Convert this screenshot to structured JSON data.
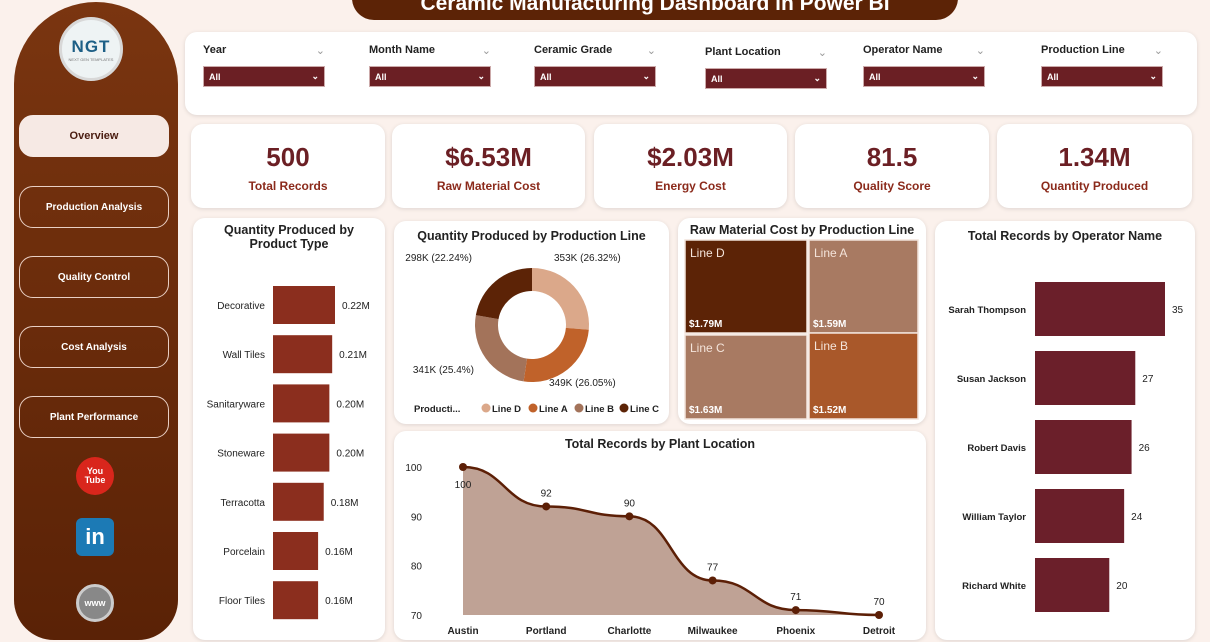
{
  "title": "Ceramic Manufacturing Dashboard in Power BI",
  "logo": {
    "text": "NGT",
    "sub": "NEXT GEN TEMPLATES"
  },
  "nav": [
    {
      "label": "Overview",
      "active": true
    },
    {
      "label": "Production Analysis"
    },
    {
      "label": "Quality Control"
    },
    {
      "label": "Cost Analysis"
    },
    {
      "label": "Plant Performance"
    }
  ],
  "social": [
    {
      "icon": "youtube-icon",
      "label": "You Tube"
    },
    {
      "icon": "linkedin-icon",
      "label": "in"
    },
    {
      "icon": "web-icon",
      "label": "www"
    }
  ],
  "filters": [
    {
      "label": "Year",
      "value": "All"
    },
    {
      "label": "Month Name",
      "value": "All"
    },
    {
      "label": "Ceramic Grade",
      "value": "All"
    },
    {
      "label": "Plant Location",
      "value": "All"
    },
    {
      "label": "Operator Name",
      "value": "All"
    },
    {
      "label": "Production Line",
      "value": "All"
    }
  ],
  "kpis": [
    {
      "value": "500",
      "label": "Total Records"
    },
    {
      "value": "$6.53M",
      "label": "Raw Material Cost"
    },
    {
      "value": "$2.03M",
      "label": "Energy Cost"
    },
    {
      "value": "81.5",
      "label": "Quality Score"
    },
    {
      "value": "1.34M",
      "label": "Quantity Produced"
    }
  ],
  "colors": {
    "accent": "#6b1f24",
    "brown": "#5c2306",
    "bar": "#8b2e1e",
    "operator_bar": "#6b1f2a"
  },
  "chart_data": [
    {
      "type": "bar",
      "orientation": "horizontal",
      "title": "Quantity Produced by Product Type",
      "categories": [
        "Decorative",
        "Wall Tiles",
        "Sanitaryware",
        "Stoneware",
        "Terracotta",
        "Porcelain",
        "Floor Tiles"
      ],
      "values": [
        0.22,
        0.21,
        0.2,
        0.2,
        0.18,
        0.16,
        0.16
      ],
      "labels": [
        "0.22M",
        "0.21M",
        "0.20M",
        "0.20M",
        "0.18M",
        "0.16M",
        "0.16M"
      ]
    },
    {
      "type": "pie",
      "subtype": "donut",
      "title": "Quantity Produced by Production Line",
      "legend_title": "Producti...",
      "categories": [
        "Line D",
        "Line A",
        "Line B",
        "Line C"
      ],
      "values": [
        353,
        349,
        341,
        298
      ],
      "percent": [
        26.32,
        26.05,
        25.4,
        22.24
      ],
      "labels": [
        "353K (26.32%)",
        "349K (26.05%)",
        "341K (25.4%)",
        "298K (22.24%)"
      ],
      "colors": [
        "#dba88a",
        "#c0622a",
        "#a3735a",
        "#5c2306"
      ]
    },
    {
      "type": "treemap",
      "title": "Raw Material Cost by Production Line",
      "categories": [
        "Line D",
        "Line A",
        "Line C",
        "Line B"
      ],
      "values": [
        1.79,
        1.59,
        1.63,
        1.52
      ],
      "labels": [
        "$1.79M",
        "$1.59M",
        "$1.63M",
        "$1.52M"
      ],
      "colors": [
        "#5c2306",
        "#a87a62",
        "#a87a62",
        "#a9582a"
      ]
    },
    {
      "type": "area",
      "title": "Total Records by Plant Location",
      "categories": [
        "Austin",
        "Portland",
        "Charlotte",
        "Milwaukee",
        "Phoenix",
        "Detroit"
      ],
      "values": [
        100,
        92,
        90,
        77,
        71,
        70
      ],
      "ylim": [
        70,
        100
      ],
      "yticks": [
        70,
        80,
        90,
        100
      ]
    },
    {
      "type": "bar",
      "orientation": "horizontal",
      "title": "Total Records by Operator Name",
      "categories": [
        "Sarah Thompson",
        "Susan Jackson",
        "Robert Davis",
        "William Taylor",
        "Richard White"
      ],
      "values": [
        35,
        27,
        26,
        24,
        20
      ]
    }
  ]
}
